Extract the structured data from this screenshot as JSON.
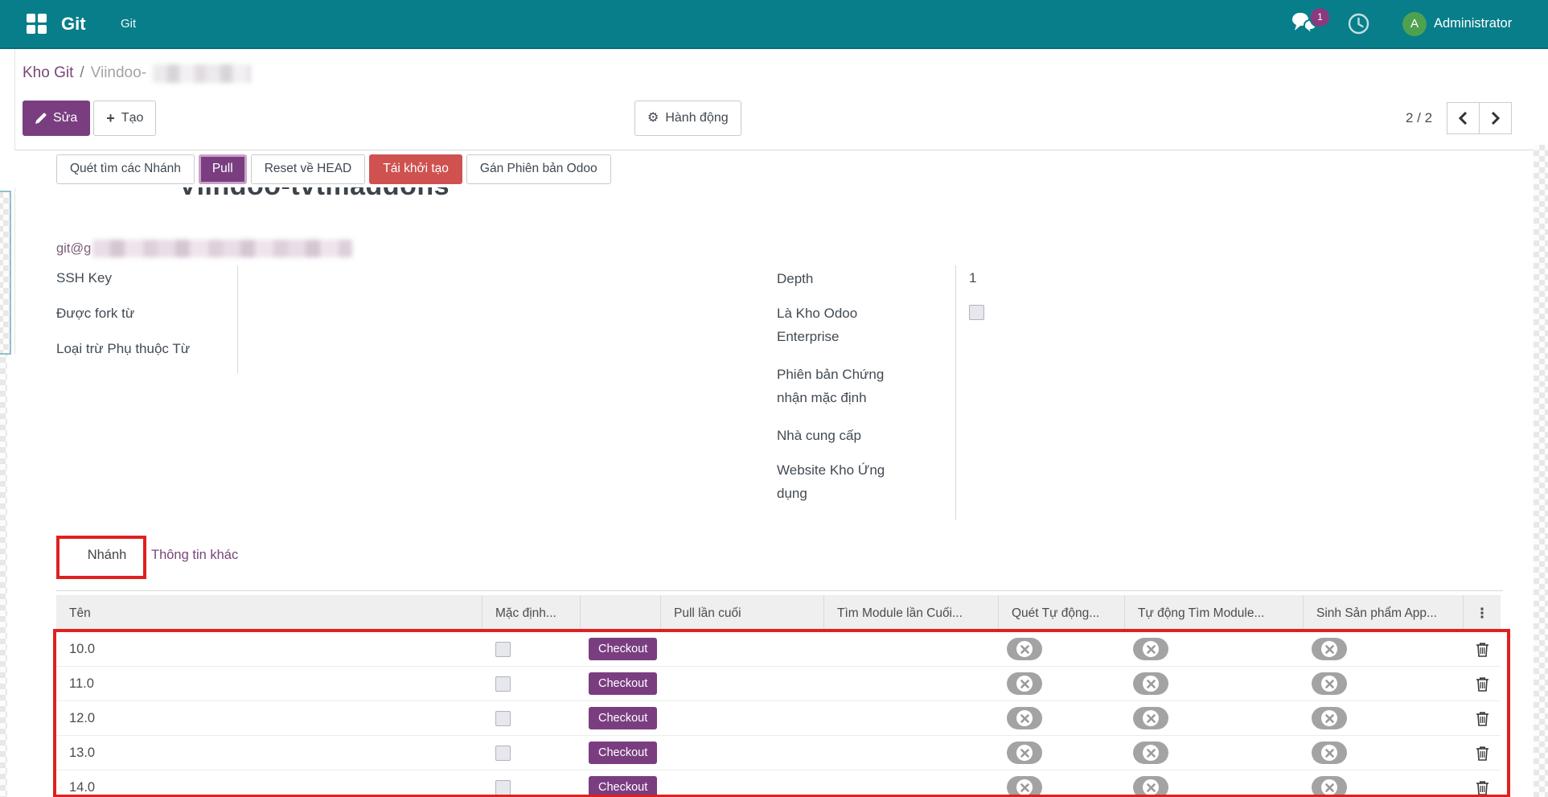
{
  "colors": {
    "navbar_bg": "#087e8a",
    "primary_purple": "#7a3e80",
    "primary_light_border": "#c9a3c9",
    "danger_red": "#cf5250",
    "annotation_red": "#e02020",
    "link_purple": "#7a4579",
    "badge_purple": "#8d397f",
    "avatar_green": "#4fa14f"
  },
  "icons": {
    "apps": "grid-squares",
    "edit": "pencil",
    "create": "plus",
    "action": "gear",
    "messages": "chat-bubbles",
    "activities": "clock",
    "pager_prev": "chevron-left",
    "pager_next": "chevron-right",
    "toggle_off": "x-in-circle",
    "row_delete": "trash",
    "column_selector": "vertical-ellipsis"
  },
  "navbar": {
    "app_title": "Git",
    "menu_item": "Git",
    "messages_badge": "1",
    "user_initial": "A",
    "user_name": "Administrator"
  },
  "breadcrumb": {
    "parent": "Kho Git",
    "separator": "/",
    "current_prefix": "Viindoo-",
    "current_redacted": true
  },
  "control_panel": {
    "edit_label": "Sửa",
    "create_label": "Tạo",
    "action_label": "Hành động",
    "pager_value": "2 / 2"
  },
  "action_buttons": [
    {
      "label": "Quét tìm các Nhánh",
      "style": "default"
    },
    {
      "label": "Pull",
      "style": "primary"
    },
    {
      "label": "Reset về HEAD",
      "style": "default"
    },
    {
      "label": "Tái khởi tạo",
      "style": "danger"
    },
    {
      "label": "Gán Phiên bản Odoo",
      "style": "default"
    }
  ],
  "form": {
    "title": "Viindoo-tvtmaddons",
    "repo_url_prefix": "git@g",
    "repo_url_redacted": true,
    "left_fields": [
      {
        "label": "SSH Key",
        "value": ""
      },
      {
        "label": "Được fork từ",
        "value": ""
      },
      {
        "label": "Loại trừ Phụ thuộc Từ",
        "value": ""
      }
    ],
    "right_fields": [
      {
        "label": "Depth",
        "type": "text",
        "value": "1",
        "tall": false
      },
      {
        "label": "Là Kho Odoo Enterprise",
        "type": "checkbox",
        "checked": false,
        "tall": true
      },
      {
        "label": "Phiên bản Chứng nhận mặc định",
        "type": "text",
        "value": "",
        "tall": true
      },
      {
        "label": "Nhà cung cấp",
        "type": "text",
        "value": "",
        "tall": false
      },
      {
        "label": "Website Kho Ứng dụng",
        "type": "text",
        "value": "",
        "tall": true
      }
    ]
  },
  "tabs": [
    {
      "label": "Nhánh",
      "active": true,
      "annotated": true
    },
    {
      "label": "Thông tin khác",
      "active": false
    }
  ],
  "table": {
    "headers": [
      "Tên",
      "Mặc định...",
      "",
      "Pull lần cuối",
      "Tìm Module lần Cuối...",
      "Quét Tự động...",
      "Tự động Tìm Module...",
      "Sinh Sản phẩm App..."
    ],
    "more_icon": "⋮",
    "checkout_label": "Checkout",
    "rows": [
      {
        "name": "10.0",
        "default": false,
        "pull_last": "",
        "module_find_last": "",
        "auto_scan": false,
        "auto_find_modules": false,
        "generate_app_products": false
      },
      {
        "name": "11.0",
        "default": false,
        "pull_last": "",
        "module_find_last": "",
        "auto_scan": false,
        "auto_find_modules": false,
        "generate_app_products": false
      },
      {
        "name": "12.0",
        "default": false,
        "pull_last": "",
        "module_find_last": "",
        "auto_scan": false,
        "auto_find_modules": false,
        "generate_app_products": false
      },
      {
        "name": "13.0",
        "default": false,
        "pull_last": "",
        "module_find_last": "",
        "auto_scan": false,
        "auto_find_modules": false,
        "generate_app_products": false
      },
      {
        "name": "14.0",
        "default": false,
        "pull_last": "",
        "module_find_last": "",
        "auto_scan": false,
        "auto_find_modules": false,
        "generate_app_products": false
      }
    ]
  }
}
